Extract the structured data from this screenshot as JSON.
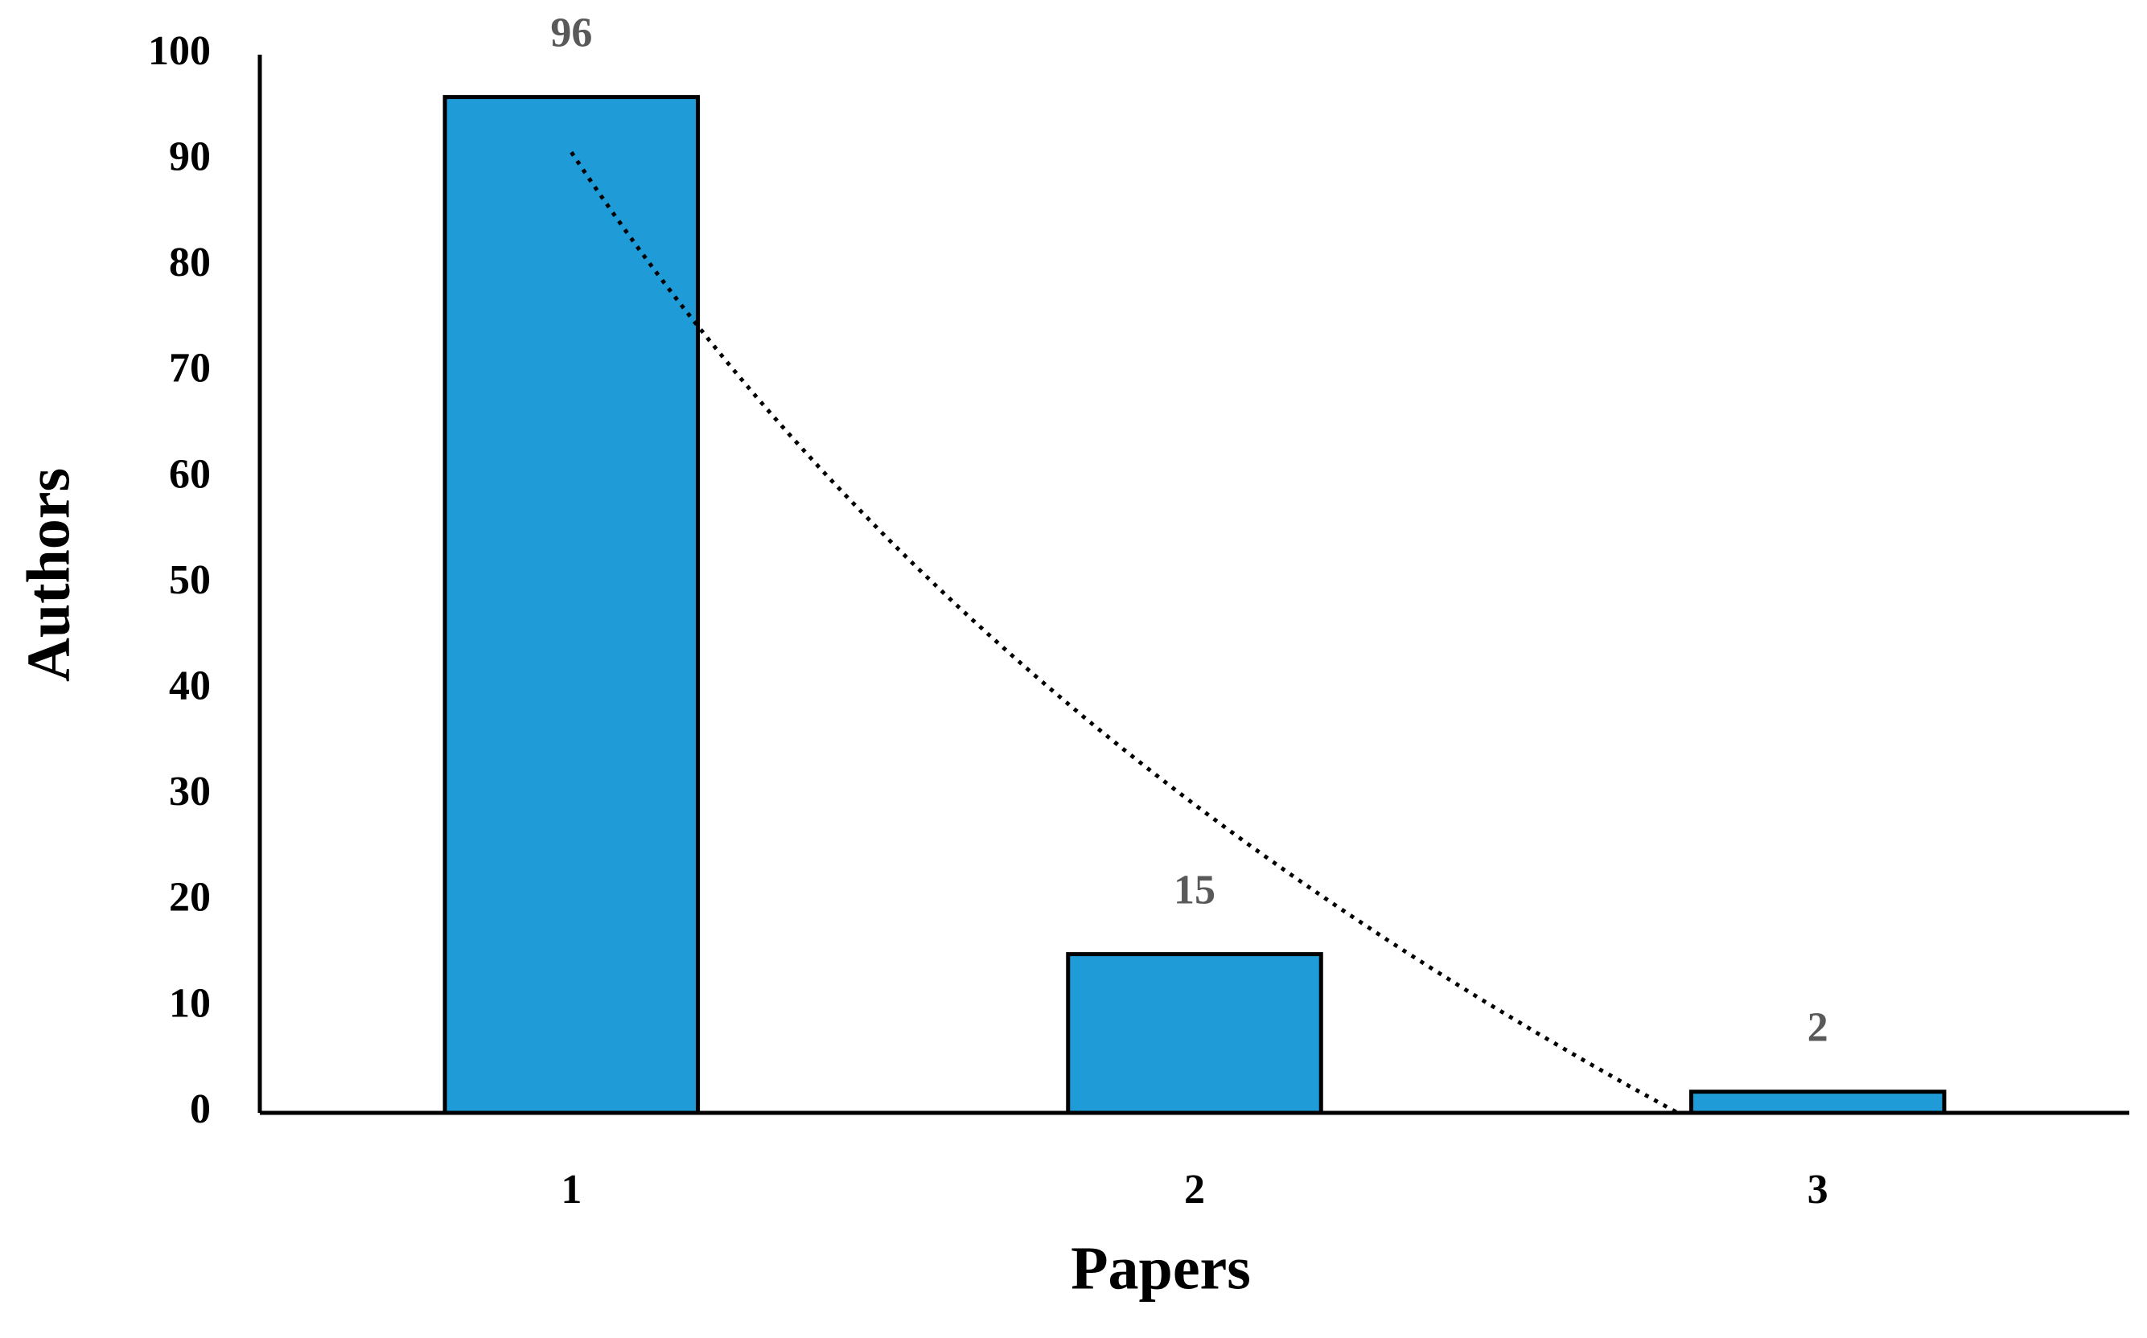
{
  "chart_data": {
    "type": "bar",
    "x_label": "Papers",
    "y_label": "Authors",
    "categories": [
      "1",
      "2",
      "3"
    ],
    "values": [
      96,
      15,
      2
    ],
    "color": "#1f9bd7",
    "ylim": [
      0,
      100
    ],
    "yticks": [
      0,
      10,
      20,
      30,
      40,
      50,
      60,
      70,
      80,
      90,
      100
    ],
    "grid": false,
    "trendline": "logarithmic"
  }
}
